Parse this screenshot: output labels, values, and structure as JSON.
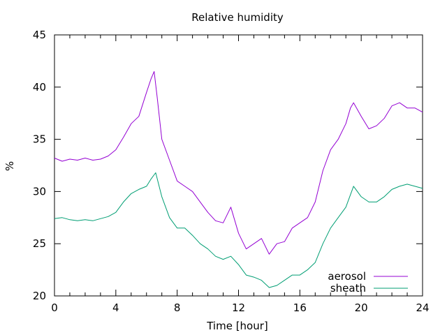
{
  "chart_data": {
    "type": "line",
    "title": "Relative humidity",
    "xlabel": "Time [hour]",
    "ylabel": "%",
    "xlim": [
      0,
      24
    ],
    "ylim": [
      20,
      45
    ],
    "xticks": [
      0,
      4,
      8,
      12,
      16,
      20,
      24
    ],
    "yticks": [
      20,
      25,
      30,
      35,
      40,
      45
    ],
    "grid": false,
    "legend_position": "bottom-right",
    "series": [
      {
        "name": "aerosol",
        "color": "#9400d3",
        "x": [
          0,
          0.5,
          1,
          1.5,
          2,
          2.5,
          3,
          3.5,
          4,
          4.5,
          5,
          5.5,
          6,
          6.3,
          6.5,
          6.7,
          7,
          7.5,
          8,
          8.5,
          9,
          9.5,
          10,
          10.5,
          11,
          11.5,
          12,
          12.5,
          13,
          13.5,
          14,
          14.5,
          15,
          15.5,
          16,
          16.5,
          17,
          17.5,
          18,
          18.5,
          19,
          19.3,
          19.5,
          20,
          20.5,
          21,
          21.5,
          22,
          22.5,
          23,
          23.5,
          24
        ],
        "y": [
          33.2,
          32.9,
          33.1,
          33.0,
          33.2,
          33.0,
          33.1,
          33.4,
          34.0,
          35.2,
          36.5,
          37.2,
          39.5,
          40.8,
          41.5,
          39.0,
          35.0,
          33.0,
          31.0,
          30.5,
          30.0,
          29.0,
          28.0,
          27.2,
          27.0,
          28.5,
          26.0,
          24.5,
          25.0,
          25.5,
          24.0,
          25.0,
          25.2,
          26.5,
          27.0,
          27.5,
          29.0,
          32.0,
          34.0,
          35.0,
          36.5,
          38.0,
          38.5,
          37.2,
          36.0,
          36.3,
          37.0,
          38.2,
          38.5,
          38.0,
          38.0,
          37.6
        ]
      },
      {
        "name": "sheath",
        "color": "#009e73",
        "x": [
          0,
          0.5,
          1,
          1.5,
          2,
          2.5,
          3,
          3.5,
          4,
          4.5,
          5,
          5.5,
          6,
          6.3,
          6.6,
          7,
          7.5,
          8,
          8.5,
          9,
          9.5,
          10,
          10.5,
          11,
          11.5,
          12,
          12.5,
          13,
          13.5,
          14,
          14.5,
          15,
          15.5,
          16,
          16.5,
          17,
          17.5,
          18,
          18.5,
          19,
          19.5,
          20,
          20.5,
          21,
          21.5,
          22,
          22.5,
          23,
          23.5,
          24
        ],
        "y": [
          27.4,
          27.5,
          27.3,
          27.2,
          27.3,
          27.2,
          27.4,
          27.6,
          28.0,
          29.0,
          29.8,
          30.2,
          30.5,
          31.2,
          31.8,
          29.5,
          27.5,
          26.5,
          26.5,
          25.8,
          25.0,
          24.5,
          23.8,
          23.5,
          23.8,
          23.0,
          22.0,
          21.8,
          21.5,
          20.8,
          21.0,
          21.5,
          22.0,
          22.0,
          22.5,
          23.2,
          25.0,
          26.5,
          27.5,
          28.5,
          30.5,
          29.5,
          29.0,
          29.0,
          29.5,
          30.2,
          30.5,
          30.7,
          30.5,
          30.3
        ]
      }
    ]
  }
}
